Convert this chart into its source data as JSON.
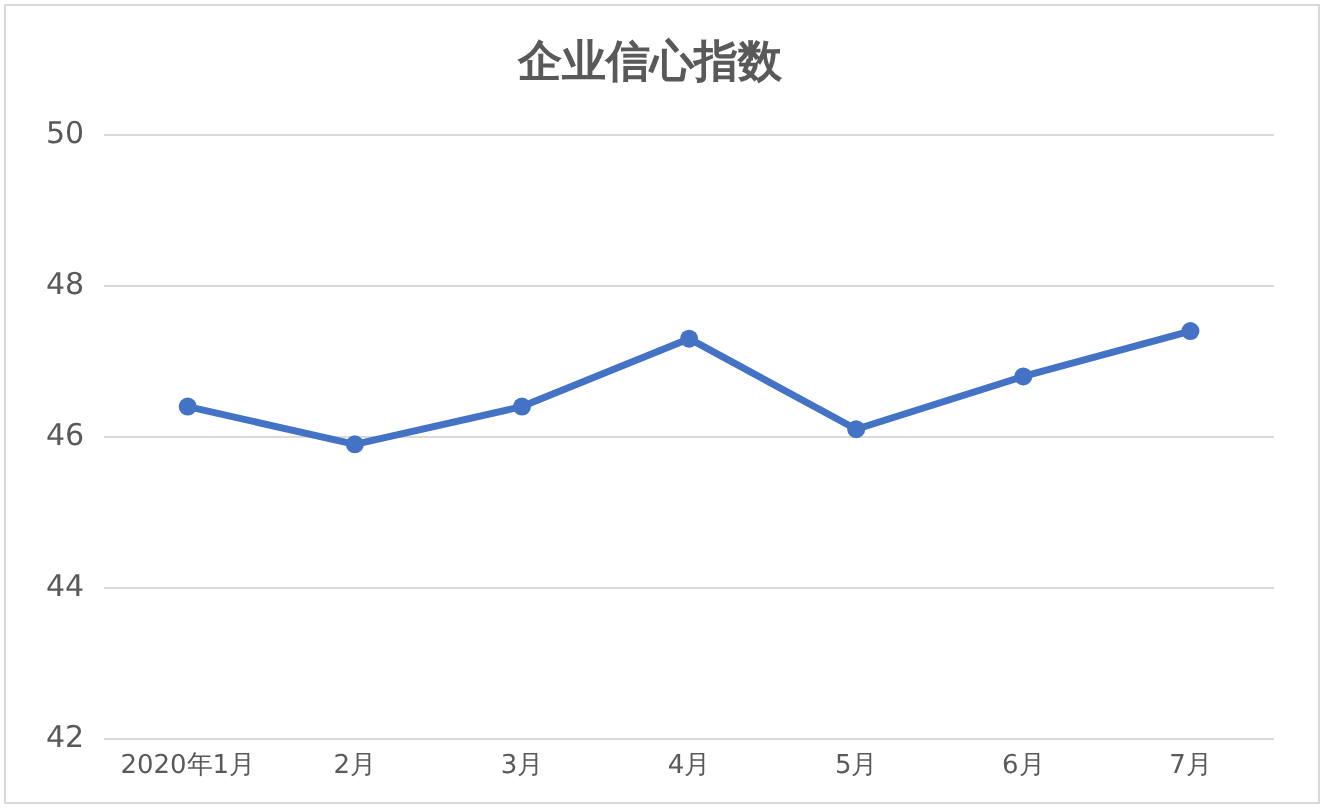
{
  "chart_data": {
    "type": "line",
    "title": "企业信心指数",
    "categories": [
      "2020年1月",
      "2月",
      "3月",
      "4月",
      "5月",
      "6月",
      "7月"
    ],
    "series": [
      {
        "color": "#4472c4",
        "values": [
          46.4,
          45.9,
          46.4,
          47.3,
          46.1,
          46.8,
          47.4
        ]
      }
    ],
    "ylim": [
      42,
      50
    ],
    "yticks": [
      42,
      44,
      46,
      48,
      50
    ],
    "grid": "y",
    "marker": "circle",
    "line_style": "solid",
    "legend": false
  }
}
